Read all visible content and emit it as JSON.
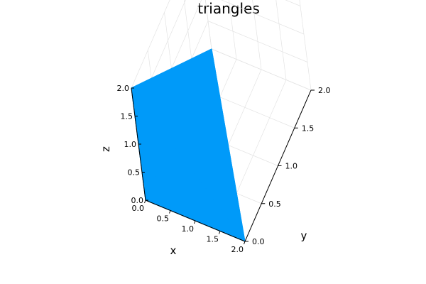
{
  "chart_data": {
    "type": "surface-3d",
    "title": "triangles",
    "xlabel": "x",
    "ylabel": "y",
    "zlabel": "z",
    "xlim": [
      0,
      2
    ],
    "ylim": [
      0,
      2
    ],
    "zlim": [
      0,
      2
    ],
    "xticks": [
      0.0,
      0.5,
      1.0,
      1.5,
      2.0
    ],
    "yticks": [
      0.0,
      0.5,
      1.0,
      1.5,
      2.0
    ],
    "zticks": [
      0.0,
      0.5,
      1.0,
      1.5,
      2.0
    ],
    "xtick_labels": [
      "0.0",
      "0.5",
      "1.0",
      "1.5",
      "2.0"
    ],
    "ytick_labels": [
      "0.0",
      "0.5",
      "1.0",
      "1.5",
      "2.0"
    ],
    "ztick_labels": [
      "0.0",
      "0.5",
      "1.0",
      "1.5",
      "2.0"
    ],
    "grid": true,
    "colors": {
      "fill": "#009af9"
    },
    "triangles": [
      {
        "vertices": [
          [
            0,
            0,
            0
          ],
          [
            2,
            0,
            0
          ],
          [
            0,
            2,
            0
          ]
        ]
      },
      {
        "vertices": [
          [
            0,
            0,
            0
          ],
          [
            2,
            0,
            0
          ],
          [
            0,
            0,
            2
          ]
        ]
      },
      {
        "vertices": [
          [
            0,
            0,
            0
          ],
          [
            0,
            2,
            0
          ],
          [
            0,
            0,
            2
          ]
        ]
      },
      {
        "vertices": [
          [
            2,
            0,
            0
          ],
          [
            0,
            2,
            0
          ],
          [
            0,
            0,
            2
          ]
        ]
      }
    ]
  }
}
